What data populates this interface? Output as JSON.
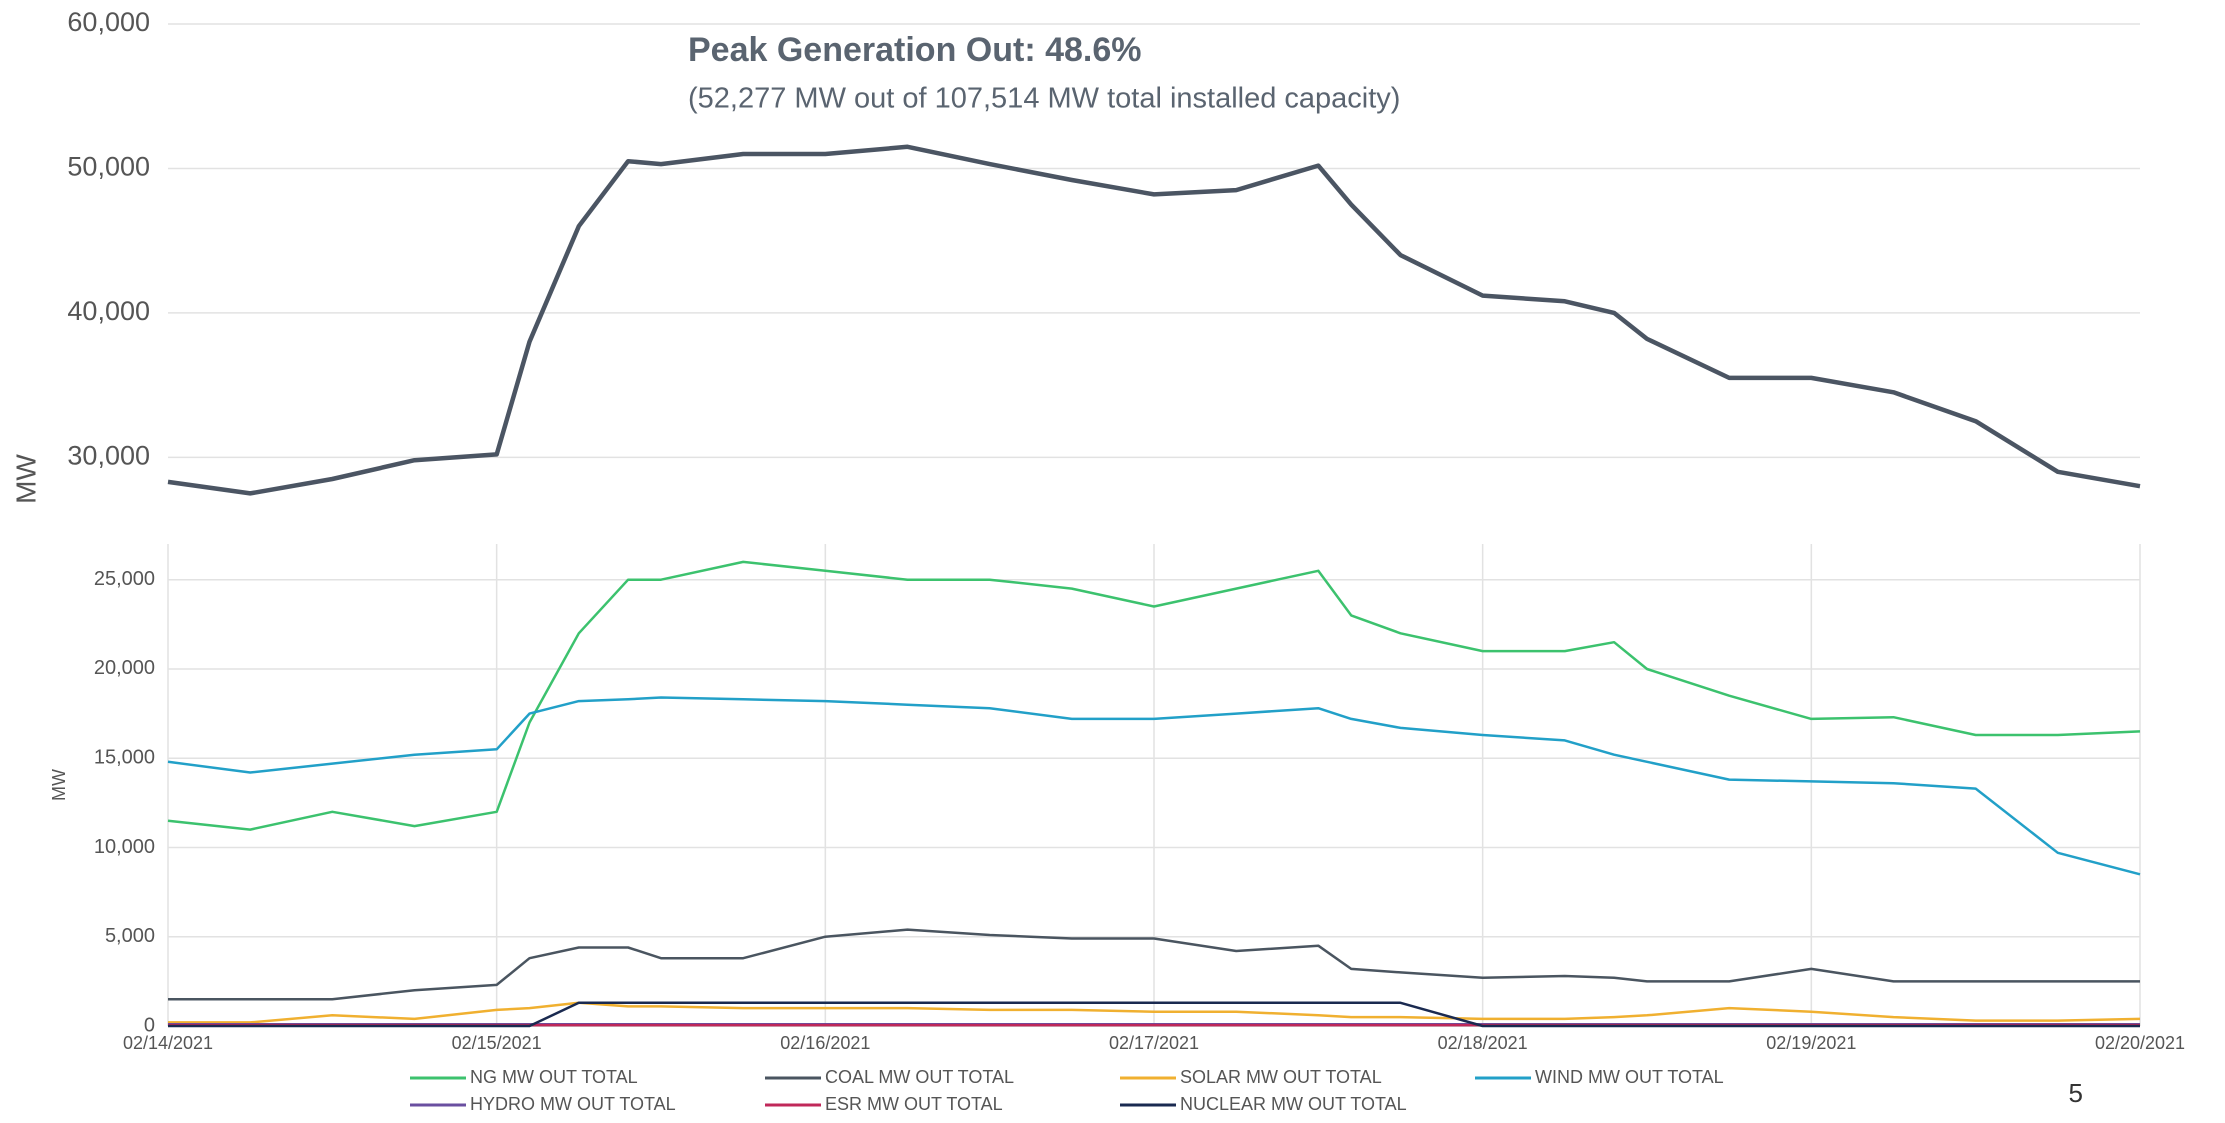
{
  "chart_data": [
    {
      "type": "line",
      "title": "Peak Generation Out: 48.6%",
      "subtitle": "(52,277 MW out of 107,514 MW total installed capacity)",
      "ylabel": "MW",
      "color": "#4b5563",
      "x": [
        0,
        0.25,
        0.5,
        0.75,
        1,
        1.1,
        1.25,
        1.4,
        1.5,
        1.75,
        2,
        2.25,
        2.5,
        2.75,
        3,
        3.25,
        3.5,
        3.6,
        3.75,
        4,
        4.25,
        4.4,
        4.5,
        4.75,
        5,
        5.25,
        5.5,
        5.75,
        6
      ],
      "values": [
        28300,
        27500,
        28500,
        29800,
        30200,
        38000,
        46000,
        50500,
        50300,
        51000,
        51000,
        51500,
        50300,
        49200,
        48200,
        48500,
        50200,
        47500,
        44000,
        41200,
        40800,
        40000,
        38200,
        35500,
        35500,
        34500,
        32500,
        29000,
        28000
      ],
      "xlim": [
        0,
        6
      ],
      "ylim": [
        24000,
        60000
      ],
      "yticks": [
        {
          "value": 30000,
          "label": "30,000"
        },
        {
          "value": 40000,
          "label": "40,000"
        },
        {
          "value": 50000,
          "label": "50,000"
        },
        {
          "value": 60000,
          "label": "60,000"
        }
      ],
      "grid": true
    },
    {
      "type": "line",
      "ylabel": "MW",
      "x": [
        0,
        0.25,
        0.5,
        0.75,
        1,
        1.1,
        1.25,
        1.4,
        1.5,
        1.75,
        2,
        2.25,
        2.5,
        2.75,
        3,
        3.25,
        3.5,
        3.6,
        3.75,
        4,
        4.25,
        4.4,
        4.5,
        4.75,
        5,
        5.25,
        5.5,
        5.75,
        6
      ],
      "series": [
        {
          "name": "NG MW OUT TOTAL",
          "color": "#3cc26e",
          "values": [
            11500,
            11000,
            12000,
            11200,
            12000,
            17000,
            22000,
            25000,
            25000,
            26000,
            25500,
            25000,
            25000,
            24500,
            23500,
            24500,
            25500,
            23000,
            22000,
            21000,
            21000,
            21500,
            20000,
            18500,
            17200,
            17300,
            16300,
            16300,
            16500
          ]
        },
        {
          "name": "COAL MW OUT TOTAL",
          "color": "#4a5560",
          "values": [
            1500,
            1500,
            1500,
            2000,
            2300,
            3800,
            4400,
            4400,
            3800,
            3800,
            5000,
            5400,
            5100,
            4900,
            4900,
            4200,
            4500,
            3200,
            3000,
            2700,
            2800,
            2700,
            2500,
            2500,
            3200,
            2500,
            2500,
            2500,
            2500
          ]
        },
        {
          "name": "SOLAR MW OUT TOTAL",
          "color": "#f0b030",
          "values": [
            200,
            200,
            600,
            400,
            900,
            1000,
            1300,
            1100,
            1100,
            1000,
            1000,
            1000,
            900,
            900,
            800,
            800,
            600,
            500,
            500,
            400,
            400,
            500,
            600,
            1000,
            800,
            500,
            300,
            300,
            400
          ]
        },
        {
          "name": "WIND MW OUT TOTAL",
          "color": "#22a0c8",
          "values": [
            14800,
            14200,
            14700,
            15200,
            15500,
            17500,
            18200,
            18300,
            18400,
            18300,
            18200,
            18000,
            17800,
            17200,
            17200,
            17500,
            17800,
            17200,
            16700,
            16300,
            16000,
            15200,
            14800,
            13800,
            13700,
            13600,
            13300,
            9700,
            8500
          ]
        },
        {
          "name": "HYDRO MW OUT TOTAL",
          "color": "#6a4fa0",
          "values": [
            100,
            100,
            100,
            100,
            100,
            100,
            100,
            100,
            100,
            100,
            100,
            100,
            100,
            100,
            100,
            100,
            100,
            100,
            100,
            100,
            100,
            100,
            100,
            100,
            100,
            100,
            100,
            100,
            100
          ]
        },
        {
          "name": "ESR MW OUT TOTAL",
          "color": "#c0285a",
          "values": [
            50,
            50,
            50,
            50,
            50,
            50,
            50,
            50,
            50,
            50,
            50,
            50,
            50,
            50,
            50,
            50,
            50,
            50,
            50,
            50,
            50,
            50,
            50,
            50,
            50,
            50,
            50,
            50,
            50
          ]
        },
        {
          "name": "NUCLEAR MW OUT TOTAL",
          "color": "#1a2a50",
          "values": [
            0,
            0,
            0,
            0,
            0,
            0,
            1300,
            1300,
            1300,
            1300,
            1300,
            1300,
            1300,
            1300,
            1300,
            1300,
            1300,
            1300,
            1300,
            0,
            0,
            0,
            0,
            0,
            0,
            0,
            0,
            0,
            0
          ]
        }
      ],
      "xlim": [
        0,
        6
      ],
      "xticks": [
        {
          "value": 0,
          "label": "02/14/2021"
        },
        {
          "value": 1,
          "label": "02/15/2021"
        },
        {
          "value": 2,
          "label": "02/16/2021"
        },
        {
          "value": 3,
          "label": "02/17/2021"
        },
        {
          "value": 4,
          "label": "02/18/2021"
        },
        {
          "value": 5,
          "label": "02/19/2021"
        },
        {
          "value": 6,
          "label": "02/20/2021"
        }
      ],
      "ylim": [
        0,
        27000
      ],
      "yticks": [
        0,
        {
          "value": 5000,
          "label": "5,000"
        },
        {
          "value": 10000,
          "label": "10,000"
        },
        {
          "value": 15000,
          "label": "15,000"
        },
        {
          "value": 20000,
          "label": "20,000"
        },
        {
          "value": 25000,
          "label": "25,000"
        }
      ],
      "grid": true,
      "legend": "bottom"
    }
  ],
  "page_number": "5"
}
